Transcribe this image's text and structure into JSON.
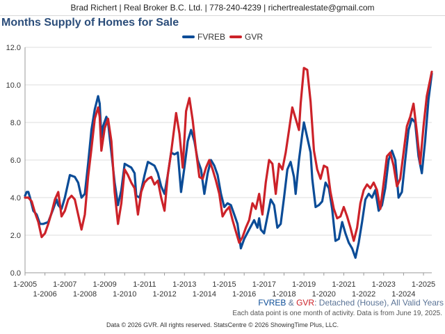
{
  "header": {
    "contact": "Brad Richert | Real Broker B.C. Ltd. | 778-240-4239 | richertrealestate@gmail.com"
  },
  "subtitle": {
    "series1": "FVREB",
    "amp": " & ",
    "series2": "GVR",
    "rest": ": Detached (House), All Valid Years"
  },
  "note": "Each data point is one month of activity. Data is from June 19, 2025.",
  "footer": "Data © 2026 GVR. All rights reserved. StatsCentre © 2026 ShowingTime Plus, LLC.",
  "colors": {
    "fvreb": "#0b4c97",
    "gvr": "#cc2229"
  },
  "chart_data": {
    "type": "line",
    "title": "Months Supply of Homes for Sale",
    "xlabel": "",
    "ylabel": "",
    "ylim": [
      0,
      12
    ],
    "yticks": [
      "0.0",
      "2.0",
      "4.0",
      "6.0",
      "8.0",
      "10.0",
      "12.0"
    ],
    "xlim": [
      "2005-01",
      "2025-06"
    ],
    "xticks_upper": [
      "1-2005",
      "1-2007",
      "1-2009",
      "1-2011",
      "1-2013",
      "1-2015",
      "1-2017",
      "1-2019",
      "1-2021",
      "1-2023",
      "1-2025"
    ],
    "xticks_lower": [
      "1-2006",
      "1-2008",
      "1-2010",
      "1-2012",
      "1-2014",
      "1-2016",
      "1-2018",
      "1-2020",
      "1-2022",
      "1-2024"
    ],
    "grid": true,
    "legend_position": "top-center",
    "series": [
      {
        "name": "FVREB",
        "color": "#0b4c97",
        "points": [
          [
            "2005-01",
            4.1
          ],
          [
            "2005-02",
            4.3
          ],
          [
            "2005-03",
            4.3
          ],
          [
            "2005-04",
            4.0
          ],
          [
            "2005-06",
            3.3
          ],
          [
            "2005-08",
            3.1
          ],
          [
            "2005-10",
            2.6
          ],
          [
            "2005-12",
            2.6
          ],
          [
            "2006-03",
            2.7
          ],
          [
            "2006-06",
            3.4
          ],
          [
            "2006-08",
            3.9
          ],
          [
            "2006-09",
            3.6
          ],
          [
            "2006-11",
            3.4
          ],
          [
            "2007-01",
            4.0
          ],
          [
            "2007-04",
            5.2
          ],
          [
            "2007-07",
            5.1
          ],
          [
            "2007-09",
            4.8
          ],
          [
            "2007-11",
            4.0
          ],
          [
            "2008-01",
            4.2
          ],
          [
            "2008-03",
            5.8
          ],
          [
            "2008-05",
            7.6
          ],
          [
            "2008-07",
            8.7
          ],
          [
            "2008-09",
            9.4
          ],
          [
            "2008-10",
            9.0
          ],
          [
            "2008-11",
            7.2
          ],
          [
            "2008-12",
            7.8
          ],
          [
            "2009-02",
            8.3
          ],
          [
            "2009-03",
            8.0
          ],
          [
            "2009-05",
            6.4
          ],
          [
            "2009-07",
            4.8
          ],
          [
            "2009-09",
            3.6
          ],
          [
            "2009-11",
            4.4
          ],
          [
            "2010-01",
            5.8
          ],
          [
            "2010-03",
            5.7
          ],
          [
            "2010-05",
            5.6
          ],
          [
            "2010-07",
            5.3
          ],
          [
            "2010-08",
            4.1
          ],
          [
            "2010-10",
            4.0
          ],
          [
            "2011-01",
            5.2
          ],
          [
            "2011-03",
            5.9
          ],
          [
            "2011-05",
            5.8
          ],
          [
            "2011-07",
            5.7
          ],
          [
            "2011-09",
            5.3
          ],
          [
            "2011-11",
            4.6
          ],
          [
            "2012-01",
            4.2
          ],
          [
            "2012-03",
            5.2
          ],
          [
            "2012-05",
            6.4
          ],
          [
            "2012-07",
            6.3
          ],
          [
            "2012-09",
            6.4
          ],
          [
            "2012-11",
            4.3
          ],
          [
            "2013-01",
            5.6
          ],
          [
            "2013-03",
            7.0
          ],
          [
            "2013-05",
            7.6
          ],
          [
            "2013-07",
            7.0
          ],
          [
            "2013-09",
            6.0
          ],
          [
            "2013-11",
            5.5
          ],
          [
            "2014-01",
            4.2
          ],
          [
            "2014-03",
            5.3
          ],
          [
            "2014-05",
            6.0
          ],
          [
            "2014-07",
            5.7
          ],
          [
            "2014-09",
            5.2
          ],
          [
            "2014-11",
            4.2
          ],
          [
            "2015-01",
            3.5
          ],
          [
            "2015-03",
            3.7
          ],
          [
            "2015-05",
            3.6
          ],
          [
            "2015-07",
            3.1
          ],
          [
            "2015-09",
            2.6
          ],
          [
            "2015-11",
            1.3
          ],
          [
            "2016-01",
            1.8
          ],
          [
            "2016-04",
            2.3
          ],
          [
            "2016-07",
            2.8
          ],
          [
            "2016-09",
            2.4
          ],
          [
            "2016-10",
            2.9
          ],
          [
            "2016-11",
            2.3
          ],
          [
            "2017-01",
            2.1
          ],
          [
            "2017-03",
            3.0
          ],
          [
            "2017-05",
            3.9
          ],
          [
            "2017-07",
            3.6
          ],
          [
            "2017-09",
            2.4
          ],
          [
            "2017-11",
            2.6
          ],
          [
            "2018-01",
            4.0
          ],
          [
            "2018-03",
            5.5
          ],
          [
            "2018-05",
            5.9
          ],
          [
            "2018-07",
            5.1
          ],
          [
            "2018-08",
            4.2
          ],
          [
            "2018-10",
            6.0
          ],
          [
            "2018-12",
            7.4
          ],
          [
            "2019-01",
            8.0
          ],
          [
            "2019-03",
            7.2
          ],
          [
            "2019-05",
            6.4
          ],
          [
            "2019-06",
            5.0
          ],
          [
            "2019-08",
            3.5
          ],
          [
            "2019-10",
            3.6
          ],
          [
            "2019-12",
            3.8
          ],
          [
            "2020-02",
            4.8
          ],
          [
            "2020-04",
            4.5
          ],
          [
            "2020-06",
            3.4
          ],
          [
            "2020-08",
            1.7
          ],
          [
            "2020-10",
            1.8
          ],
          [
            "2020-12",
            2.7
          ],
          [
            "2021-02",
            2.1
          ],
          [
            "2021-04",
            1.6
          ],
          [
            "2021-06",
            1.3
          ],
          [
            "2021-08",
            0.8
          ],
          [
            "2021-10",
            1.6
          ],
          [
            "2021-12",
            2.7
          ],
          [
            "2022-02",
            3.9
          ],
          [
            "2022-04",
            4.2
          ],
          [
            "2022-06",
            4.0
          ],
          [
            "2022-08",
            4.4
          ],
          [
            "2022-10",
            3.3
          ],
          [
            "2022-12",
            3.6
          ],
          [
            "2023-02",
            4.5
          ],
          [
            "2023-04",
            6.0
          ],
          [
            "2023-06",
            6.5
          ],
          [
            "2023-08",
            6.0
          ],
          [
            "2023-10",
            4.0
          ],
          [
            "2023-12",
            4.3
          ],
          [
            "2024-02",
            6.0
          ],
          [
            "2024-04",
            7.6
          ],
          [
            "2024-06",
            8.2
          ],
          [
            "2024-08",
            8.0
          ],
          [
            "2024-10",
            6.2
          ],
          [
            "2024-12",
            5.3
          ],
          [
            "2025-02",
            7.0
          ],
          [
            "2025-04",
            9.2
          ],
          [
            "2025-06",
            10.6
          ]
        ]
      },
      {
        "name": "GVR",
        "color": "#cc2229",
        "points": [
          [
            "2005-01",
            4.0
          ],
          [
            "2005-03",
            4.0
          ],
          [
            "2005-05",
            3.8
          ],
          [
            "2005-07",
            3.2
          ],
          [
            "2005-09",
            2.7
          ],
          [
            "2005-11",
            1.9
          ],
          [
            "2006-01",
            2.1
          ],
          [
            "2006-03",
            2.6
          ],
          [
            "2006-05",
            3.2
          ],
          [
            "2006-07",
            3.9
          ],
          [
            "2006-09",
            4.3
          ],
          [
            "2006-11",
            3.0
          ],
          [
            "2007-01",
            3.3
          ],
          [
            "2007-03",
            3.9
          ],
          [
            "2007-05",
            4.1
          ],
          [
            "2007-07",
            3.9
          ],
          [
            "2007-09",
            3.1
          ],
          [
            "2007-11",
            2.3
          ],
          [
            "2008-01",
            3.1
          ],
          [
            "2008-03",
            5.1
          ],
          [
            "2008-05",
            6.6
          ],
          [
            "2008-07",
            8.2
          ],
          [
            "2008-09",
            8.8
          ],
          [
            "2008-10",
            8.3
          ],
          [
            "2008-11",
            6.5
          ],
          [
            "2009-01",
            7.7
          ],
          [
            "2009-03",
            8.2
          ],
          [
            "2009-05",
            7.0
          ],
          [
            "2009-07",
            4.3
          ],
          [
            "2009-09",
            2.6
          ],
          [
            "2009-11",
            3.7
          ],
          [
            "2010-01",
            5.5
          ],
          [
            "2010-03",
            5.2
          ],
          [
            "2010-05",
            4.8
          ],
          [
            "2010-07",
            4.5
          ],
          [
            "2010-09",
            3.1
          ],
          [
            "2010-11",
            4.3
          ],
          [
            "2011-01",
            4.8
          ],
          [
            "2011-03",
            5.0
          ],
          [
            "2011-05",
            5.1
          ],
          [
            "2011-07",
            4.7
          ],
          [
            "2011-09",
            4.9
          ],
          [
            "2011-11",
            4.0
          ],
          [
            "2012-01",
            3.3
          ],
          [
            "2012-03",
            5.2
          ],
          [
            "2012-05",
            6.4
          ],
          [
            "2012-07",
            7.8
          ],
          [
            "2012-08",
            8.5
          ],
          [
            "2012-10",
            7.4
          ],
          [
            "2012-12",
            5.6
          ],
          [
            "2013-02",
            8.6
          ],
          [
            "2013-04",
            9.3
          ],
          [
            "2013-06",
            8.1
          ],
          [
            "2013-08",
            6.5
          ],
          [
            "2013-10",
            5.1
          ],
          [
            "2013-12",
            5.0
          ],
          [
            "2014-02",
            5.6
          ],
          [
            "2014-04",
            6.0
          ],
          [
            "2014-06",
            5.5
          ],
          [
            "2014-08",
            4.9
          ],
          [
            "2014-10",
            4.2
          ],
          [
            "2014-12",
            3.0
          ],
          [
            "2015-02",
            3.3
          ],
          [
            "2015-04",
            3.5
          ],
          [
            "2015-06",
            2.8
          ],
          [
            "2015-08",
            2.2
          ],
          [
            "2015-10",
            1.6
          ],
          [
            "2015-12",
            1.9
          ],
          [
            "2016-02",
            2.4
          ],
          [
            "2016-04",
            2.8
          ],
          [
            "2016-06",
            3.7
          ],
          [
            "2016-08",
            3.4
          ],
          [
            "2016-10",
            4.2
          ],
          [
            "2016-12",
            3.1
          ],
          [
            "2017-02",
            4.8
          ],
          [
            "2017-04",
            6.0
          ],
          [
            "2017-06",
            5.8
          ],
          [
            "2017-08",
            4.2
          ],
          [
            "2017-10",
            5.8
          ],
          [
            "2017-12",
            5.5
          ],
          [
            "2018-02",
            6.4
          ],
          [
            "2018-04",
            7.6
          ],
          [
            "2018-06",
            8.8
          ],
          [
            "2018-08",
            8.2
          ],
          [
            "2018-10",
            7.6
          ],
          [
            "2018-11",
            9.0
          ],
          [
            "2019-01",
            10.9
          ],
          [
            "2019-03",
            10.8
          ],
          [
            "2019-05",
            9.1
          ],
          [
            "2019-07",
            6.5
          ],
          [
            "2019-09",
            5.5
          ],
          [
            "2019-11",
            5.0
          ],
          [
            "2020-01",
            5.7
          ],
          [
            "2020-03",
            5.6
          ],
          [
            "2020-05",
            4.3
          ],
          [
            "2020-07",
            3.4
          ],
          [
            "2020-09",
            2.9
          ],
          [
            "2020-11",
            3.0
          ],
          [
            "2021-01",
            3.5
          ],
          [
            "2021-03",
            3.0
          ],
          [
            "2021-05",
            2.4
          ],
          [
            "2021-07",
            1.7
          ],
          [
            "2021-09",
            2.4
          ],
          [
            "2021-11",
            3.7
          ],
          [
            "2022-01",
            4.4
          ],
          [
            "2022-03",
            4.7
          ],
          [
            "2022-05",
            4.5
          ],
          [
            "2022-07",
            4.8
          ],
          [
            "2022-09",
            4.4
          ],
          [
            "2022-11",
            3.4
          ],
          [
            "2023-01",
            4.8
          ],
          [
            "2023-03",
            6.2
          ],
          [
            "2023-05",
            6.4
          ],
          [
            "2023-07",
            5.7
          ],
          [
            "2023-09",
            4.6
          ],
          [
            "2023-11",
            5.0
          ],
          [
            "2024-01",
            6.4
          ],
          [
            "2024-03",
            7.8
          ],
          [
            "2024-05",
            8.3
          ],
          [
            "2024-07",
            9.0
          ],
          [
            "2024-09",
            7.5
          ],
          [
            "2024-11",
            5.8
          ],
          [
            "2025-01",
            7.8
          ],
          [
            "2025-03",
            9.4
          ],
          [
            "2025-06",
            10.7
          ]
        ]
      }
    ]
  }
}
